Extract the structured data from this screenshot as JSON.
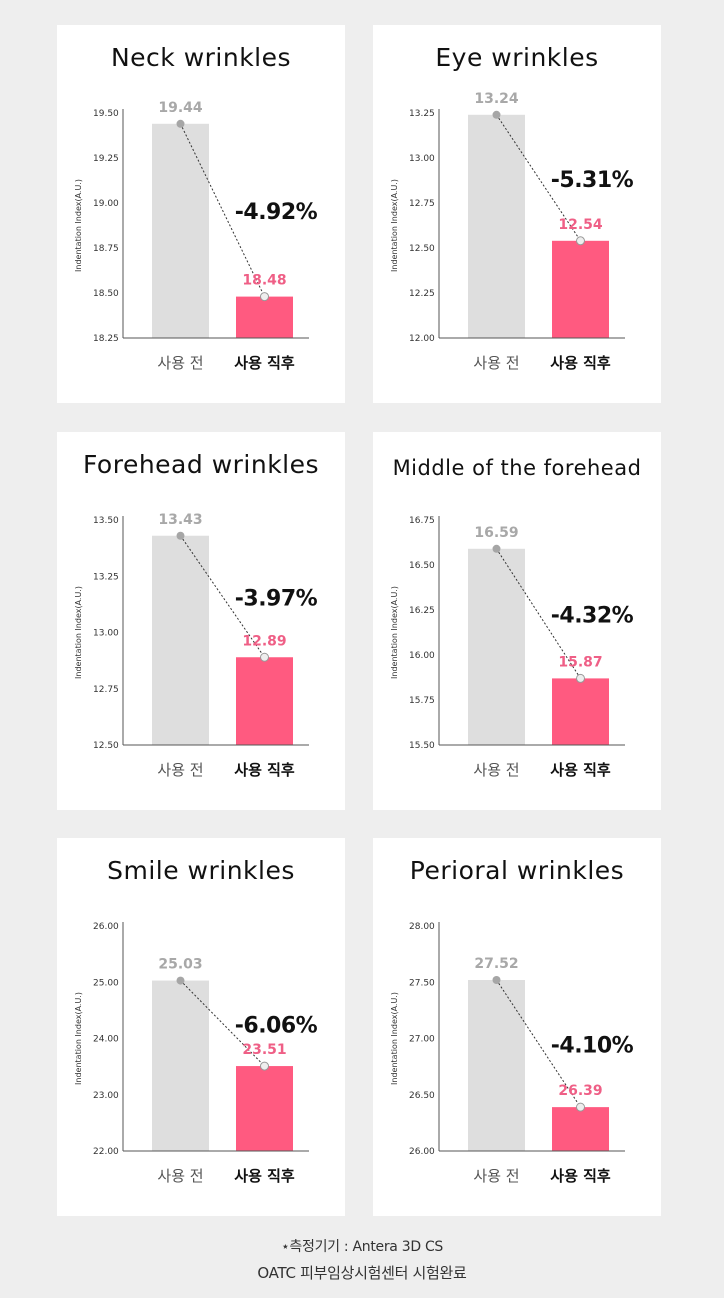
{
  "colors": {
    "background": "#eeeeee",
    "panel": "#ffffff",
    "before_bar": "#dedede",
    "after_bar": "#ff5a80",
    "before_label": "#a8a8a8",
    "after_label": "#ef5f86",
    "axis": "#555555",
    "change_label": "#111111"
  },
  "chart_data": [
    {
      "type": "bar",
      "title": "Neck wrinkles",
      "ylabel": "Indentation Index(A.U.)",
      "categories": [
        "사용 전",
        "사용 직후"
      ],
      "values": [
        19.44,
        18.48
      ],
      "value_labels": [
        "19.44",
        "18.48"
      ],
      "change_label": "-4.92%",
      "ylim": [
        18.25,
        19.5
      ],
      "yticks": [
        "18.25",
        "18.50",
        "18.75",
        "19.00",
        "19.25",
        "19.50"
      ]
    },
    {
      "type": "bar",
      "title": "Eye wrinkles",
      "ylabel": "Indentation Index(A.U.)",
      "categories": [
        "사용 전",
        "사용 직후"
      ],
      "values": [
        13.24,
        12.54
      ],
      "value_labels": [
        "13.24",
        "12.54"
      ],
      "change_label": "-5.31%",
      "ylim": [
        12.0,
        13.25
      ],
      "yticks": [
        "12.00",
        "12.25",
        "12.50",
        "12.75",
        "13.00",
        "13.25"
      ]
    },
    {
      "type": "bar",
      "title": "Forehead wrinkles",
      "ylabel": "Indentation Index(A.U.)",
      "categories": [
        "사용 전",
        "사용 직후"
      ],
      "values": [
        13.43,
        12.89
      ],
      "value_labels": [
        "13.43",
        "12.89"
      ],
      "change_label": "-3.97%",
      "ylim": [
        12.5,
        13.5
      ],
      "yticks": [
        "12.50",
        "12.75",
        "13.00",
        "13.25",
        "13.50"
      ]
    },
    {
      "type": "bar",
      "title": "Middle of the forehead",
      "ylabel": "Indentation Index(A.U.)",
      "categories": [
        "사용 전",
        "사용 직후"
      ],
      "values": [
        16.59,
        15.87
      ],
      "value_labels": [
        "16.59",
        "15.87"
      ],
      "change_label": "-4.32%",
      "ylim": [
        15.5,
        16.75
      ],
      "yticks": [
        "15.50",
        "15.75",
        "16.00",
        "16.25",
        "16.50",
        "16.75"
      ]
    },
    {
      "type": "bar",
      "title": "Smile wrinkles",
      "ylabel": "Indentation Index(A.U.)",
      "categories": [
        "사용 전",
        "사용 직후"
      ],
      "values": [
        25.03,
        23.51
      ],
      "value_labels": [
        "25.03",
        "23.51"
      ],
      "change_label": "-6.06%",
      "ylim": [
        22.0,
        26.0
      ],
      "yticks": [
        "22.00",
        "23.00",
        "24.00",
        "25.00",
        "26.00"
      ]
    },
    {
      "type": "bar",
      "title": "Perioral wrinkles",
      "ylabel": "Indentation Index(A.U.)",
      "categories": [
        "사용 전",
        "사용 직후"
      ],
      "values": [
        27.52,
        26.39
      ],
      "value_labels": [
        "27.52",
        "26.39"
      ],
      "change_label": "-4.10%",
      "ylim": [
        26.0,
        28.0
      ],
      "yticks": [
        "26.00",
        "26.50",
        "27.00",
        "27.50",
        "28.00"
      ]
    }
  ],
  "footer": {
    "line1": "⋆측정기기 : Antera 3D CS",
    "line2": "OATC 피부임상시험센터 시험완료"
  }
}
